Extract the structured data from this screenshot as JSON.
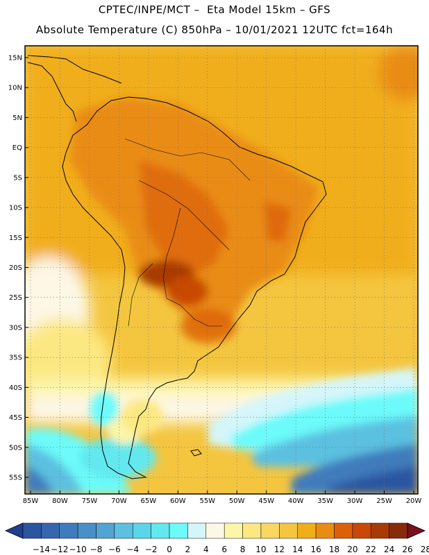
{
  "header": {
    "line1": "CPTEC/INPE/MCT –  Eta Model 15km – GFS",
    "line2": "Absolute Temperature (C) 850hPa – 10/01/2021 12UTC fct=164h"
  },
  "map": {
    "lat_labels": [
      "15N",
      "10N",
      "5N",
      "EQ",
      "5S",
      "10S",
      "15S",
      "20S",
      "25S",
      "30S",
      "35S",
      "40S",
      "45S",
      "50S",
      "55S"
    ],
    "lon_labels": [
      "85W",
      "80W",
      "75W",
      "70W",
      "65W",
      "60W",
      "55W",
      "50W",
      "45W",
      "40W",
      "35W",
      "30W",
      "25W",
      "20W"
    ],
    "grid": "dotted"
  },
  "colorbar": {
    "ticks": [
      "-14",
      "-12",
      "-10",
      "-8",
      "-6",
      "-4",
      "-2",
      "0",
      "2",
      "4",
      "6",
      "8",
      "10",
      "12",
      "14",
      "16",
      "18",
      "20",
      "22",
      "24",
      "26",
      "28"
    ],
    "colors": [
      "#1f3f8c",
      "#2a55a0",
      "#3567ae",
      "#3f7cbc",
      "#4a90c8",
      "#52a4d2",
      "#5cc0e0",
      "#5ad6e8",
      "#62e8ee",
      "#6cfafa",
      "#d4f6fa",
      "#fdf7e6",
      "#fdf5a8",
      "#fce882",
      "#f8d860",
      "#f4c640",
      "#f1ae1a",
      "#e98c14",
      "#dc6008",
      "#c84804",
      "#a83a04",
      "#862c0a",
      "#7a1020"
    ]
  }
}
